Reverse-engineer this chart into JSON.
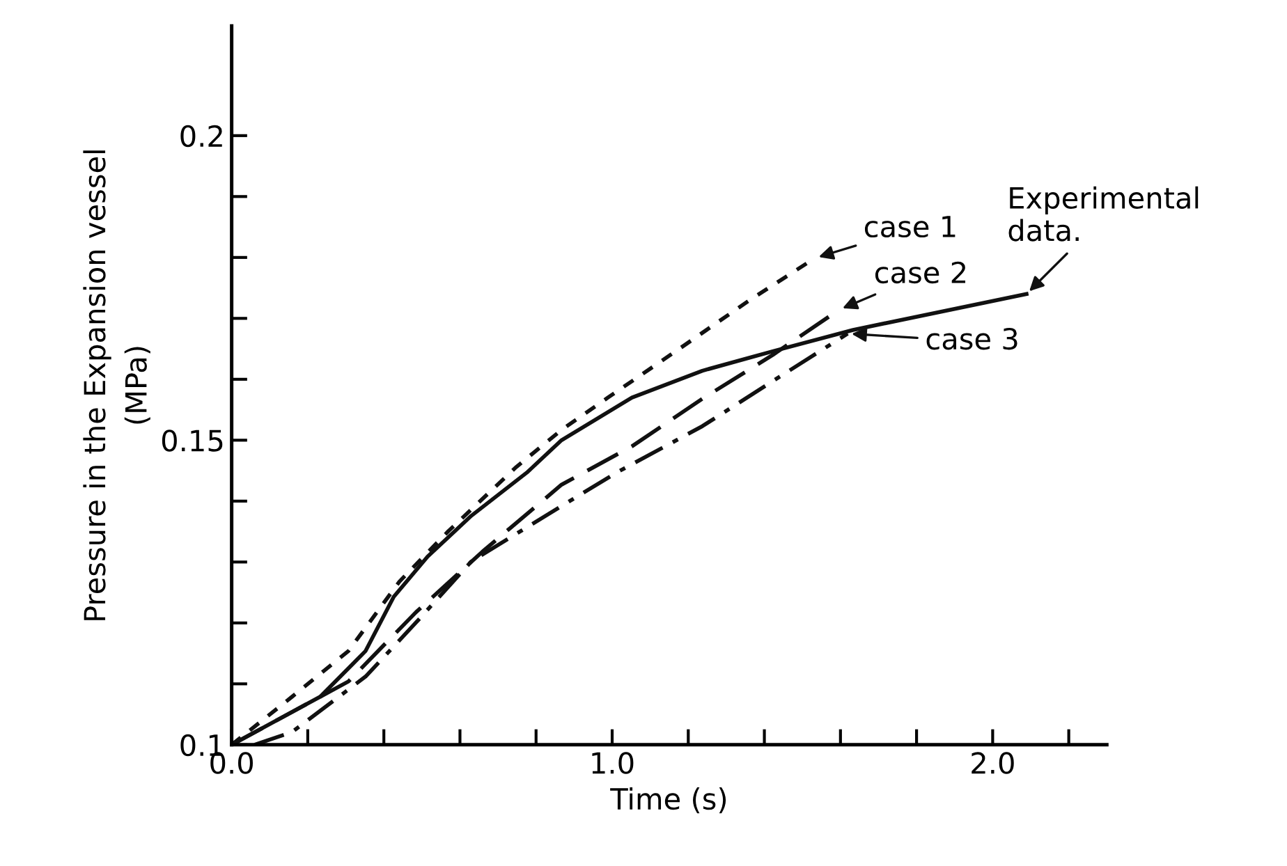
{
  "chart_data": {
    "type": "line",
    "xlabel": "Time (s)",
    "ylabel": "Pressure in the Expansion vessel\n(MPa)",
    "xlim": [
      0,
      2.3
    ],
    "ylim": [
      0.1,
      0.218
    ],
    "xticks": [
      {
        "value": 0,
        "label": "0.0"
      },
      {
        "value": 0.2,
        "label": null
      },
      {
        "value": 0.4,
        "label": null
      },
      {
        "value": 0.6,
        "label": null
      },
      {
        "value": 0.8,
        "label": null
      },
      {
        "value": 1.0,
        "label": "1.0"
      },
      {
        "value": 1.2,
        "label": null
      },
      {
        "value": 1.4,
        "label": null
      },
      {
        "value": 1.6,
        "label": null
      },
      {
        "value": 1.8,
        "label": null
      },
      {
        "value": 2.0,
        "label": "2.0"
      },
      {
        "value": 2.2,
        "label": null
      }
    ],
    "yticks": [
      0.1,
      {
        "value": 0.11,
        "label": null
      },
      {
        "value": 0.12,
        "label": null
      },
      {
        "value": 0.13,
        "label": null
      },
      {
        "value": 0.14,
        "label": null
      },
      0.15,
      {
        "value": 0.16,
        "label": null
      },
      {
        "value": 0.17,
        "label": null
      },
      {
        "value": 0.18,
        "label": null
      },
      {
        "value": 0.19,
        "label": null
      },
      0.2
    ],
    "grid": false,
    "legend": false,
    "series": [
      {
        "color": "#111111",
        "line_style": "solid",
        "x": [
          0,
          0.233,
          0.352,
          0.426,
          0.515,
          0.63,
          0.778,
          0.867,
          1.052,
          1.237,
          1.422,
          1.633,
          2.089
        ],
        "values": [
          0.1,
          0.1079,
          0.1154,
          0.1243,
          0.1309,
          0.1376,
          0.1448,
          0.15,
          0.157,
          0.1614,
          0.1646,
          0.1681,
          0.174
        ]
      },
      {
        "color": "#111111",
        "line_style": "dotted",
        "x": [
          0,
          0.159,
          0.307,
          0.441,
          0.57,
          0.748,
          0.867,
          0.989,
          1.174,
          1.359,
          1.533
        ],
        "values": [
          0.1,
          0.1079,
          0.1154,
          0.1268,
          0.1351,
          0.1456,
          0.1517,
          0.157,
          0.1649,
          0.1729,
          0.1799
        ]
      },
      {
        "color": "#111111",
        "line_style": "dashed",
        "x": [
          0,
          0.307,
          0.485,
          0.659,
          0.867,
          1.052,
          1.237,
          1.422,
          1.596
        ],
        "values": [
          0.1,
          0.1104,
          0.1218,
          0.1317,
          0.1427,
          0.149,
          0.1568,
          0.164,
          0.1714
        ]
      },
      {
        "color": "#111111",
        "line_style": "dashdot",
        "x": [
          0.06,
          0.159,
          0.352,
          0.485,
          0.63,
          0.867,
          1.015,
          1.237,
          1.422,
          1.619
        ],
        "values": [
          0.1,
          0.1021,
          0.1112,
          0.1201,
          0.1301,
          0.1392,
          0.1448,
          0.1523,
          0.1597,
          0.1675
        ]
      }
    ],
    "annotations": [
      {
        "text": "Experimental\ndata.",
        "x": 2.089,
        "y": 0.174
      },
      {
        "text": "case 1",
        "x": 1.533,
        "y": 0.1799
      },
      {
        "text": "case 2",
        "x": 1.596,
        "y": 0.1714
      },
      {
        "text": "case 3",
        "x": 1.619,
        "y": 0.1675
      }
    ]
  }
}
